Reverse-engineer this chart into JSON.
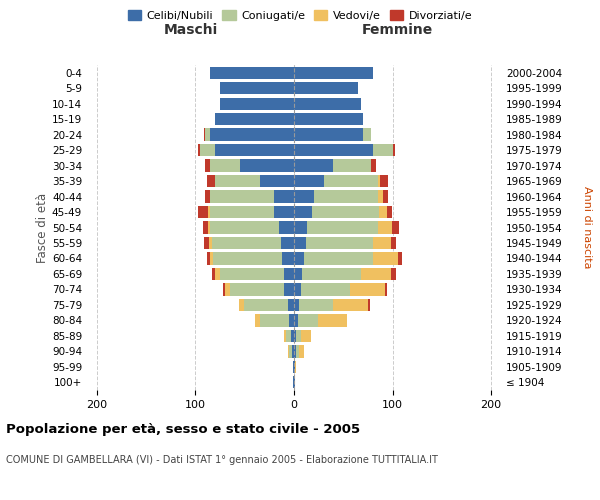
{
  "age_groups": [
    "100+",
    "95-99",
    "90-94",
    "85-89",
    "80-84",
    "75-79",
    "70-74",
    "65-69",
    "60-64",
    "55-59",
    "50-54",
    "45-49",
    "40-44",
    "35-39",
    "30-34",
    "25-29",
    "20-24",
    "15-19",
    "10-14",
    "5-9",
    "0-4"
  ],
  "birth_years": [
    "≤ 1904",
    "1905-1909",
    "1910-1914",
    "1915-1919",
    "1920-1924",
    "1925-1929",
    "1930-1934",
    "1935-1939",
    "1940-1944",
    "1945-1949",
    "1950-1954",
    "1955-1959",
    "1960-1964",
    "1965-1969",
    "1970-1974",
    "1975-1979",
    "1980-1984",
    "1985-1989",
    "1990-1994",
    "1995-1999",
    "2000-2004"
  ],
  "males": {
    "celibi": [
      1,
      1,
      2,
      3,
      5,
      6,
      10,
      10,
      12,
      13,
      15,
      20,
      20,
      35,
      55,
      80,
      85,
      80,
      75,
      75,
      85
    ],
    "coniugati": [
      0,
      0,
      3,
      5,
      30,
      45,
      55,
      65,
      70,
      70,
      70,
      65,
      65,
      45,
      30,
      15,
      5,
      0,
      0,
      0,
      0
    ],
    "vedovi": [
      0,
      0,
      1,
      2,
      5,
      5,
      5,
      5,
      3,
      3,
      2,
      2,
      0,
      0,
      0,
      0,
      0,
      0,
      0,
      0,
      0
    ],
    "divorziati": [
      0,
      0,
      0,
      0,
      0,
      0,
      2,
      3,
      3,
      5,
      5,
      10,
      5,
      8,
      5,
      2,
      1,
      0,
      0,
      0,
      0
    ]
  },
  "females": {
    "nubili": [
      1,
      1,
      2,
      2,
      4,
      5,
      7,
      8,
      10,
      12,
      13,
      18,
      20,
      30,
      40,
      80,
      70,
      70,
      68,
      65,
      80
    ],
    "coniugate": [
      0,
      0,
      3,
      5,
      20,
      35,
      50,
      60,
      70,
      68,
      72,
      68,
      65,
      55,
      38,
      20,
      8,
      0,
      0,
      0,
      0
    ],
    "vedove": [
      0,
      1,
      5,
      10,
      30,
      35,
      35,
      30,
      25,
      18,
      14,
      8,
      5,
      2,
      0,
      0,
      0,
      0,
      0,
      0,
      0
    ],
    "divorziate": [
      0,
      0,
      0,
      0,
      0,
      2,
      2,
      5,
      5,
      5,
      8,
      5,
      5,
      8,
      5,
      2,
      0,
      0,
      0,
      0,
      0
    ]
  },
  "colors": {
    "celibi": "#3d6da8",
    "coniugati": "#b5c99a",
    "vedovi": "#f0c060",
    "divorziati": "#c0392b"
  },
  "xlim": 210,
  "title": "Popolazione per età, sesso e stato civile - 2005",
  "subtitle": "COMUNE DI GAMBELLARA (VI) - Dati ISTAT 1° gennaio 2005 - Elaborazione TUTTITALIA.IT",
  "ylabel_left": "Fasce di età",
  "ylabel_right": "Anni di nascita",
  "xlabel_left": "Maschi",
  "xlabel_right": "Femmine",
  "background_color": "#ffffff",
  "grid_color": "#cccccc"
}
